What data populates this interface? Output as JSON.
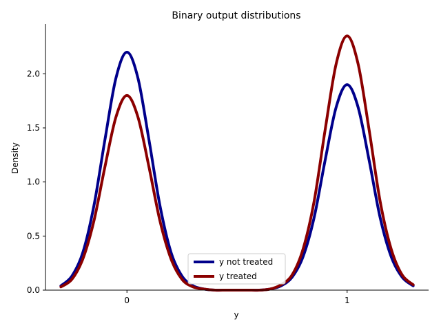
{
  "chart_data": {
    "type": "line",
    "title": "Binary output distributions",
    "xlabel": "y",
    "ylabel": "Density",
    "xlim": [
      -0.37,
      1.37
    ],
    "ylim": [
      0,
      2.46
    ],
    "x_ticks": [
      0,
      1
    ],
    "x_tick_labels": [
      "0",
      "1"
    ],
    "y_ticks": [
      0.0,
      0.5,
      1.0,
      1.5,
      2.0
    ],
    "y_tick_labels": [
      "0.0",
      "0.5",
      "1.0",
      "1.5",
      "2.0"
    ],
    "grid": false,
    "legend_position": "lower-center",
    "series": [
      {
        "name": "y not treated",
        "color": "#00008b",
        "x": [
          -0.3,
          -0.25,
          -0.2,
          -0.15,
          -0.1,
          -0.05,
          0.0,
          0.05,
          0.1,
          0.15,
          0.2,
          0.25,
          0.3,
          0.35,
          0.4,
          0.45,
          0.5,
          0.55,
          0.6,
          0.65,
          0.7,
          0.75,
          0.8,
          0.85,
          0.9,
          0.95,
          1.0,
          1.05,
          1.1,
          1.15,
          1.2,
          1.25,
          1.3
        ],
        "y": [
          0.04,
          0.13,
          0.35,
          0.78,
          1.39,
          1.96,
          2.2,
          1.96,
          1.39,
          0.78,
          0.35,
          0.13,
          0.04,
          0.01,
          0.0,
          0.0,
          0.0,
          0.0,
          0.0,
          0.01,
          0.04,
          0.12,
          0.31,
          0.67,
          1.2,
          1.69,
          1.9,
          1.69,
          1.2,
          0.67,
          0.31,
          0.12,
          0.04
        ]
      },
      {
        "name": "y treated",
        "color": "#8b0000",
        "x": [
          -0.3,
          -0.25,
          -0.2,
          -0.15,
          -0.1,
          -0.05,
          0.0,
          0.05,
          0.1,
          0.15,
          0.2,
          0.25,
          0.3,
          0.35,
          0.4,
          0.45,
          0.5,
          0.55,
          0.6,
          0.65,
          0.7,
          0.75,
          0.8,
          0.85,
          0.9,
          0.95,
          1.0,
          1.05,
          1.1,
          1.15,
          1.2,
          1.25,
          1.3
        ],
        "y": [
          0.03,
          0.1,
          0.29,
          0.64,
          1.14,
          1.6,
          1.8,
          1.6,
          1.14,
          0.64,
          0.29,
          0.1,
          0.03,
          0.01,
          0.0,
          0.0,
          0.0,
          0.0,
          0.0,
          0.01,
          0.05,
          0.14,
          0.38,
          0.82,
          1.48,
          2.09,
          2.35,
          2.09,
          1.48,
          0.82,
          0.38,
          0.14,
          0.05
        ]
      }
    ]
  }
}
